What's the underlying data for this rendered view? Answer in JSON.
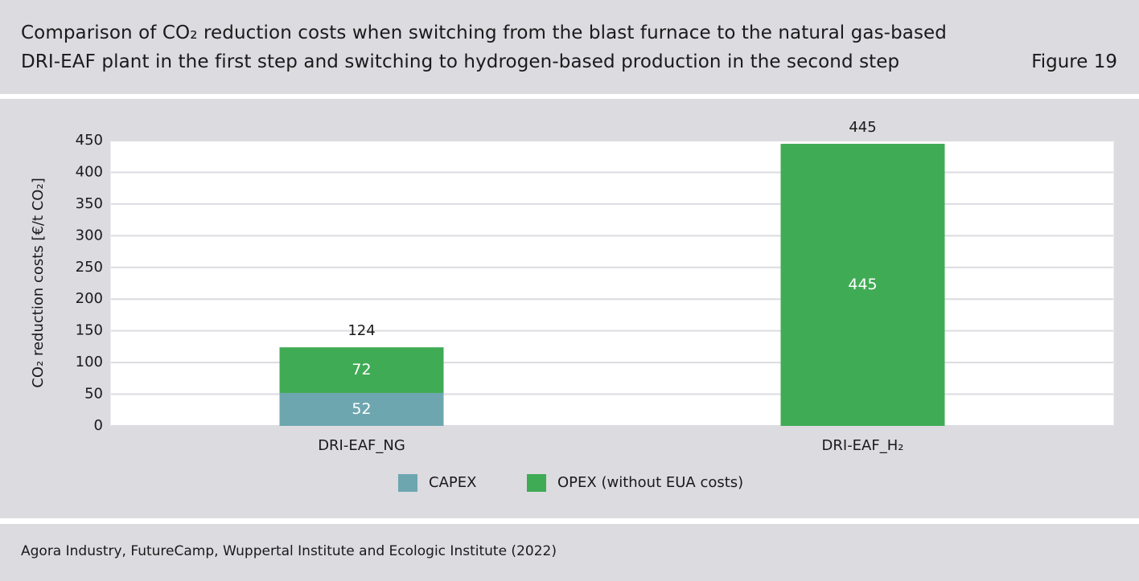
{
  "header": {
    "title_line1": "Comparison of CO₂ reduction costs when switching from the blast furnace to the natural gas-based",
    "title_line2": "DRI-EAF plant in the first step and switching to hydrogen-based production in the second step",
    "figure_label": "Figure 19"
  },
  "chart_data": {
    "type": "bar",
    "stacked": true,
    "categories": [
      "DRI-EAF_NG",
      "DRI-EAF_H₂"
    ],
    "series": [
      {
        "name": "CAPEX",
        "values": [
          52,
          0
        ],
        "color": "#6ea6b0"
      },
      {
        "name": "OPEX (without EUA costs)",
        "values": [
          72,
          445
        ],
        "color": "#40ab55"
      }
    ],
    "totals": [
      124,
      445
    ],
    "segment_labels": [
      [
        "52",
        "72"
      ],
      [
        null,
        "445"
      ]
    ],
    "ylabel": "CO₂ reduction costs [€/t CO₂]",
    "ylim": [
      0,
      450
    ],
    "yticks": [
      0,
      50,
      100,
      150,
      200,
      250,
      300,
      350,
      400,
      450
    ],
    "grid": true,
    "legend_position": "bottom-center"
  },
  "footer": {
    "source": "Agora Industry, FutureCamp, Wuppertal Institute and Ecologic Institute (2022)"
  }
}
